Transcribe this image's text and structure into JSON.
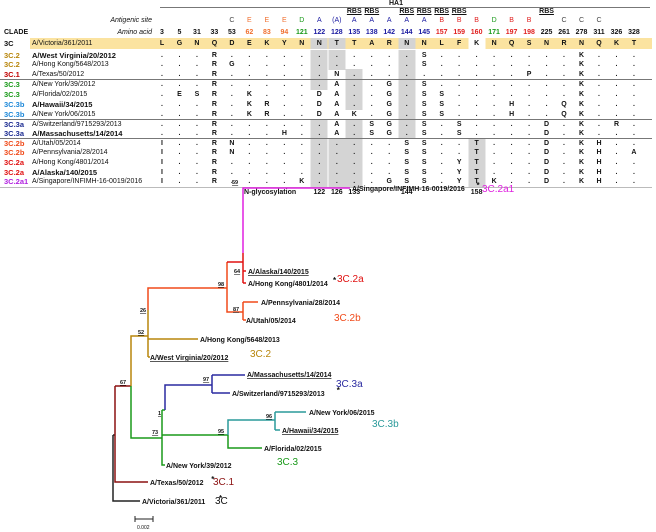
{
  "table": {
    "ha1_label": "HA1",
    "clade_header": "CLADE",
    "antigenic_site_label": "Antigenic site",
    "amino_acid_label": "Amino acid",
    "columns": [
      {
        "aa": "3",
        "site": "",
        "rbs": ""
      },
      {
        "aa": "5",
        "site": "",
        "rbs": ""
      },
      {
        "aa": "31",
        "site": "",
        "rbs": ""
      },
      {
        "aa": "33",
        "site": "",
        "rbs": ""
      },
      {
        "aa": "53",
        "site": "C",
        "rbs": ""
      },
      {
        "aa": "62",
        "site": "E",
        "rbs": ""
      },
      {
        "aa": "83",
        "site": "E",
        "rbs": ""
      },
      {
        "aa": "94",
        "site": "E",
        "rbs": ""
      },
      {
        "aa": "121",
        "site": "D",
        "rbs": ""
      },
      {
        "aa": "122",
        "site": "A",
        "rbs": ""
      },
      {
        "aa": "128",
        "site": "(A)",
        "rbs": ""
      },
      {
        "aa": "135",
        "site": "A",
        "rbs": "RBS"
      },
      {
        "aa": "138",
        "site": "A",
        "rbs": "RBS"
      },
      {
        "aa": "142",
        "site": "A",
        "rbs": ""
      },
      {
        "aa": "144",
        "site": "A",
        "rbs": "RBS"
      },
      {
        "aa": "145",
        "site": "A",
        "rbs": "RBS"
      },
      {
        "aa": "157",
        "site": "B",
        "rbs": "RBS"
      },
      {
        "aa": "159",
        "site": "B",
        "rbs": "RBS"
      },
      {
        "aa": "160",
        "site": "B",
        "rbs": ""
      },
      {
        "aa": "171",
        "site": "D",
        "rbs": ""
      },
      {
        "aa": "197",
        "site": "B",
        "rbs": ""
      },
      {
        "aa": "198",
        "site": "B",
        "rbs": ""
      },
      {
        "aa": "225",
        "site": "",
        "rbs": "RBS"
      },
      {
        "aa": "261",
        "site": "C",
        "rbs": ""
      },
      {
        "aa": "278",
        "site": "C",
        "rbs": ""
      },
      {
        "aa": "311",
        "site": "C",
        "rbs": ""
      },
      {
        "aa": "326",
        "site": "",
        "rbs": ""
      },
      {
        "aa": "328",
        "site": "",
        "rbs": ""
      }
    ],
    "site_colors": {
      "A": "#1a1aa0",
      "(A)": "#1a1aa0",
      "B": "#e02020",
      "C": "#444444",
      "D": "#1a9a1a",
      "E": "#f07030",
      "": "#111111"
    },
    "rows": [
      {
        "clade": "3C",
        "strain": "A/Victoria/361/2011",
        "bold": false,
        "color": "#111111",
        "residues": [
          "L",
          "G",
          "N",
          "Q",
          "D",
          "E",
          "K",
          "Y",
          "N",
          "N",
          "T",
          "T",
          "A",
          "R",
          "N",
          "N",
          "L",
          "F",
          "K",
          "N",
          "Q",
          "S",
          "N",
          "R",
          "N",
          "Q",
          "K",
          "T"
        ]
      },
      {
        "clade": "3C.2",
        "strain": "A/West Virginia/20/2012",
        "bold": true,
        "color": "#b8860b",
        "residues": [
          ".",
          ".",
          ".",
          "R",
          ".",
          ".",
          ".",
          ".",
          ".",
          ".",
          ".",
          ".",
          ".",
          ".",
          ".",
          "S",
          ".",
          ".",
          ".",
          ".",
          ".",
          ".",
          ".",
          ".",
          "K",
          ".",
          ".",
          "."
        ]
      },
      {
        "clade": "3C.2",
        "strain": "A/Hong Kong/5648/2013",
        "bold": false,
        "color": "#b8860b",
        "residues": [
          ".",
          ".",
          ".",
          "R",
          "G",
          ".",
          ".",
          ".",
          ".",
          ".",
          ".",
          ".",
          ".",
          ".",
          ".",
          "S",
          ".",
          ".",
          ".",
          ".",
          ".",
          ".",
          ".",
          ".",
          "K",
          ".",
          ".",
          "."
        ]
      },
      {
        "clade": "3C.1",
        "strain": "A/Texas/50/2012",
        "bold": false,
        "color": "#c00000",
        "residues": [
          ".",
          ".",
          ".",
          "R",
          ".",
          ".",
          ".",
          ".",
          ".",
          ".",
          "N",
          ".",
          ".",
          ".",
          ".",
          ".",
          ".",
          ".",
          ".",
          ".",
          ".",
          "P",
          ".",
          ".",
          "K",
          ".",
          ".",
          "."
        ]
      },
      {
        "clade": "3C.3",
        "strain": "A/New York/39/2012",
        "bold": false,
        "color": "#1a9a1a",
        "residues": [
          ".",
          ".",
          ".",
          "R",
          ".",
          ".",
          ".",
          ".",
          ".",
          ".",
          "A",
          ".",
          ".",
          "G",
          ".",
          "S",
          ".",
          ".",
          ".",
          ".",
          ".",
          ".",
          ".",
          ".",
          "K",
          ".",
          ".",
          "."
        ]
      },
      {
        "clade": "3C.3",
        "strain": "A/Florida/02/2015",
        "bold": false,
        "color": "#1a9a1a",
        "residues": [
          ".",
          "E",
          "S",
          "R",
          ".",
          "K",
          ".",
          ".",
          ".",
          "D",
          "A",
          ".",
          ".",
          "G",
          ".",
          "S",
          "S",
          ".",
          ".",
          ".",
          ".",
          ".",
          ".",
          ".",
          "K",
          ".",
          ".",
          "."
        ]
      },
      {
        "clade": "3C.3b",
        "strain": "A/Hawaii/34/2015",
        "bold": true,
        "color": "#1e88d8",
        "residues": [
          ".",
          ".",
          ".",
          "R",
          ".",
          "K",
          "R",
          ".",
          ".",
          "D",
          "A",
          ".",
          ".",
          "G",
          ".",
          "S",
          "S",
          ".",
          ".",
          ".",
          "H",
          ".",
          ".",
          "Q",
          "K",
          ".",
          ".",
          "."
        ]
      },
      {
        "clade": "3C.3b",
        "strain": "A/New York/06/2015",
        "bold": false,
        "color": "#1e88d8",
        "residues": [
          ".",
          ".",
          ".",
          "R",
          ".",
          "K",
          "R",
          ".",
          ".",
          "D",
          "A",
          "K",
          ".",
          "G",
          ".",
          "S",
          "S",
          ".",
          ".",
          ".",
          "H",
          ".",
          ".",
          "Q",
          "K",
          ".",
          ".",
          "."
        ]
      },
      {
        "clade": "3C.3a",
        "strain": "A/Switzerland/9715293/2013",
        "bold": false,
        "color": "#1a2a90",
        "residues": [
          ".",
          ".",
          ".",
          "R",
          ".",
          ".",
          ".",
          ".",
          ".",
          ".",
          "A",
          ".",
          "S",
          "G",
          ".",
          "S",
          ".",
          "S",
          ".",
          ".",
          ".",
          ".",
          "D",
          ".",
          "K",
          ".",
          "R",
          "."
        ]
      },
      {
        "clade": "3C.3a",
        "strain": "A/Massachusetts/14/2014",
        "bold": true,
        "color": "#1a2a90",
        "residues": [
          ".",
          ".",
          ".",
          "R",
          ".",
          ".",
          ".",
          "H",
          ".",
          ".",
          "A",
          ".",
          "S",
          "G",
          ".",
          "S",
          ".",
          "S",
          ".",
          ".",
          ".",
          ".",
          "D",
          ".",
          "K",
          ".",
          ".",
          "."
        ]
      },
      {
        "clade": "3C.2b",
        "strain": "A/Utah/05/2014",
        "bold": false,
        "color": "#f04a1a",
        "residues": [
          "I",
          ".",
          ".",
          "R",
          "N",
          ".",
          ".",
          ".",
          ".",
          ".",
          ".",
          ".",
          ".",
          ".",
          "S",
          "S",
          ".",
          ".",
          "T",
          ".",
          ".",
          ".",
          "D",
          ".",
          "K",
          "H",
          ".",
          "."
        ]
      },
      {
        "clade": "3C.2b",
        "strain": "A/Pennsylvania/28/2014",
        "bold": false,
        "color": "#f04a1a",
        "residues": [
          "I",
          ".",
          ".",
          "R",
          "N",
          ".",
          ".",
          ".",
          ".",
          ".",
          ".",
          ".",
          ".",
          ".",
          "S",
          "S",
          ".",
          ".",
          "T",
          ".",
          ".",
          ".",
          "D",
          ".",
          "K",
          "H",
          ".",
          "A"
        ]
      },
      {
        "clade": "3C.2a",
        "strain": "A/Hong Kong/4801/2014",
        "bold": false,
        "color": "#e01010",
        "residues": [
          "I",
          ".",
          ".",
          "R",
          ".",
          ".",
          ".",
          ".",
          ".",
          ".",
          ".",
          ".",
          ".",
          ".",
          "S",
          "S",
          ".",
          "Y",
          "T",
          ".",
          ".",
          ".",
          "D",
          ".",
          "K",
          "H",
          ".",
          "."
        ]
      },
      {
        "clade": "3C.2a",
        "strain": "A/Alaska/140/2015",
        "bold": true,
        "color": "#e01010",
        "residues": [
          "I",
          ".",
          ".",
          "R",
          ".",
          ".",
          ".",
          ".",
          ".",
          ".",
          ".",
          ".",
          ".",
          ".",
          "S",
          "S",
          ".",
          "Y",
          "T",
          ".",
          ".",
          ".",
          "D",
          ".",
          "K",
          "H",
          ".",
          "."
        ]
      },
      {
        "clade": "3C.2a1",
        "strain": "A/Singapore/INFIMH-16-0019/2016",
        "bold": false,
        "color": "#b020e0",
        "residues": [
          "I",
          ".",
          ".",
          "R",
          ".",
          ".",
          ".",
          ".",
          "K",
          ".",
          ".",
          ".",
          ".",
          "G",
          "S",
          "S",
          ".",
          "Y",
          "T",
          "K",
          ".",
          ".",
          "D",
          ".",
          "K",
          "H",
          ".",
          "."
        ]
      }
    ],
    "glyco_label": "N-glycosylation",
    "glyco_sites": [
      {
        "col": 9,
        "label": "122"
      },
      {
        "col": 10,
        "label": "126"
      },
      {
        "col": 11,
        "label": "133"
      },
      {
        "col": 14,
        "label": "144"
      },
      {
        "col": 18,
        "label": "158"
      }
    ]
  },
  "tree": {
    "leaves": {
      "singapore": "A/Singapore/INFIMH-16-0019/2016",
      "alaska": "A/Alaska/140/2015",
      "hongkong4801": "A/Hong Kong/4801/2014",
      "pennsylvania": "A/Pennsylvania/28/2014",
      "utah": "A/Utah/05/2014",
      "hongkong5648": "A/Hong Kong/5648/2013",
      "westvirginia": "A/West Virginia/20/2012",
      "massachusetts": "A/Massachusetts/14/2014",
      "switzerland": "A/Switzerland/9715293/2013",
      "newyork06": "A/New York/06/2015",
      "hawaii": "A/Hawaii/34/2015",
      "florida": "A/Florida/02/2015",
      "newyork39": "A/New York/39/2012",
      "texas": "A/Texas/50/2012",
      "victoria": "A/Victoria/361/2011"
    },
    "reference_marker": "*",
    "clades": {
      "c2a1": "3C.2a1",
      "c2a": "3C.2a",
      "c2b": "3C.2b",
      "c2": "3C.2",
      "c3a": "3C.3a",
      "c3b": "3C.3b",
      "c3": "3C.3",
      "c1": "3C.1",
      "c": "3C"
    },
    "bootstrap": {
      "n59": "59",
      "n64": "64",
      "n98": "98",
      "n87": "87",
      "n26": "26",
      "n52": "52",
      "n67": "67",
      "n97": "97",
      "n1": "1",
      "n73": "73",
      "n95": "95",
      "n96": "96"
    },
    "scale_label": "0.002"
  }
}
